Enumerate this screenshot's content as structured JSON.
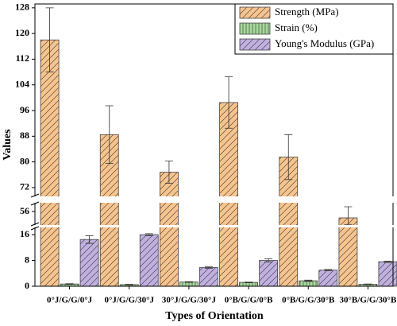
{
  "chart_data": {
    "type": "bar",
    "x_label": "Types of Orientation",
    "y_label": "Values",
    "categories": [
      "0°J/G/G/0°J",
      "0°J/G/G/30°J",
      "30°J/G/G/30°J",
      "0°B/G/G/0°B",
      "0°B/G/G/30°B",
      "30°B/G/G/30°B"
    ],
    "series": [
      {
        "name": "Strength (MPa)",
        "color": "#f7c48e",
        "values": [
          118,
          88.5,
          76.8,
          98.5,
          81.5,
          54
        ],
        "errors": [
          10,
          9,
          3.5,
          8,
          7,
          3.5
        ]
      },
      {
        "name": "Strain (%)",
        "color": "#a6d99a",
        "values": [
          0.7,
          0.5,
          1.3,
          1.2,
          1.7,
          0.6
        ],
        "errors": [
          0.1,
          0.1,
          0.1,
          0.1,
          0.2,
          0.1
        ]
      },
      {
        "name": "Young's Modulus (GPa)",
        "color": "#c0b0e0",
        "values": [
          14.5,
          16,
          5.8,
          8,
          5,
          7.6
        ],
        "errors": [
          1.2,
          0.3,
          0.2,
          0.5,
          0.2,
          0.2
        ]
      }
    ],
    "y_segments": [
      {
        "ylim": [
          0,
          18
        ]
      },
      {
        "ylim": [
          52,
          58.5
        ]
      },
      {
        "ylim": [
          69.5,
          129.2
        ]
      }
    ],
    "yticks": [
      0,
      8,
      16,
      56,
      72,
      80,
      88,
      96,
      104,
      112,
      120,
      128
    ],
    "legend": "top-right"
  }
}
